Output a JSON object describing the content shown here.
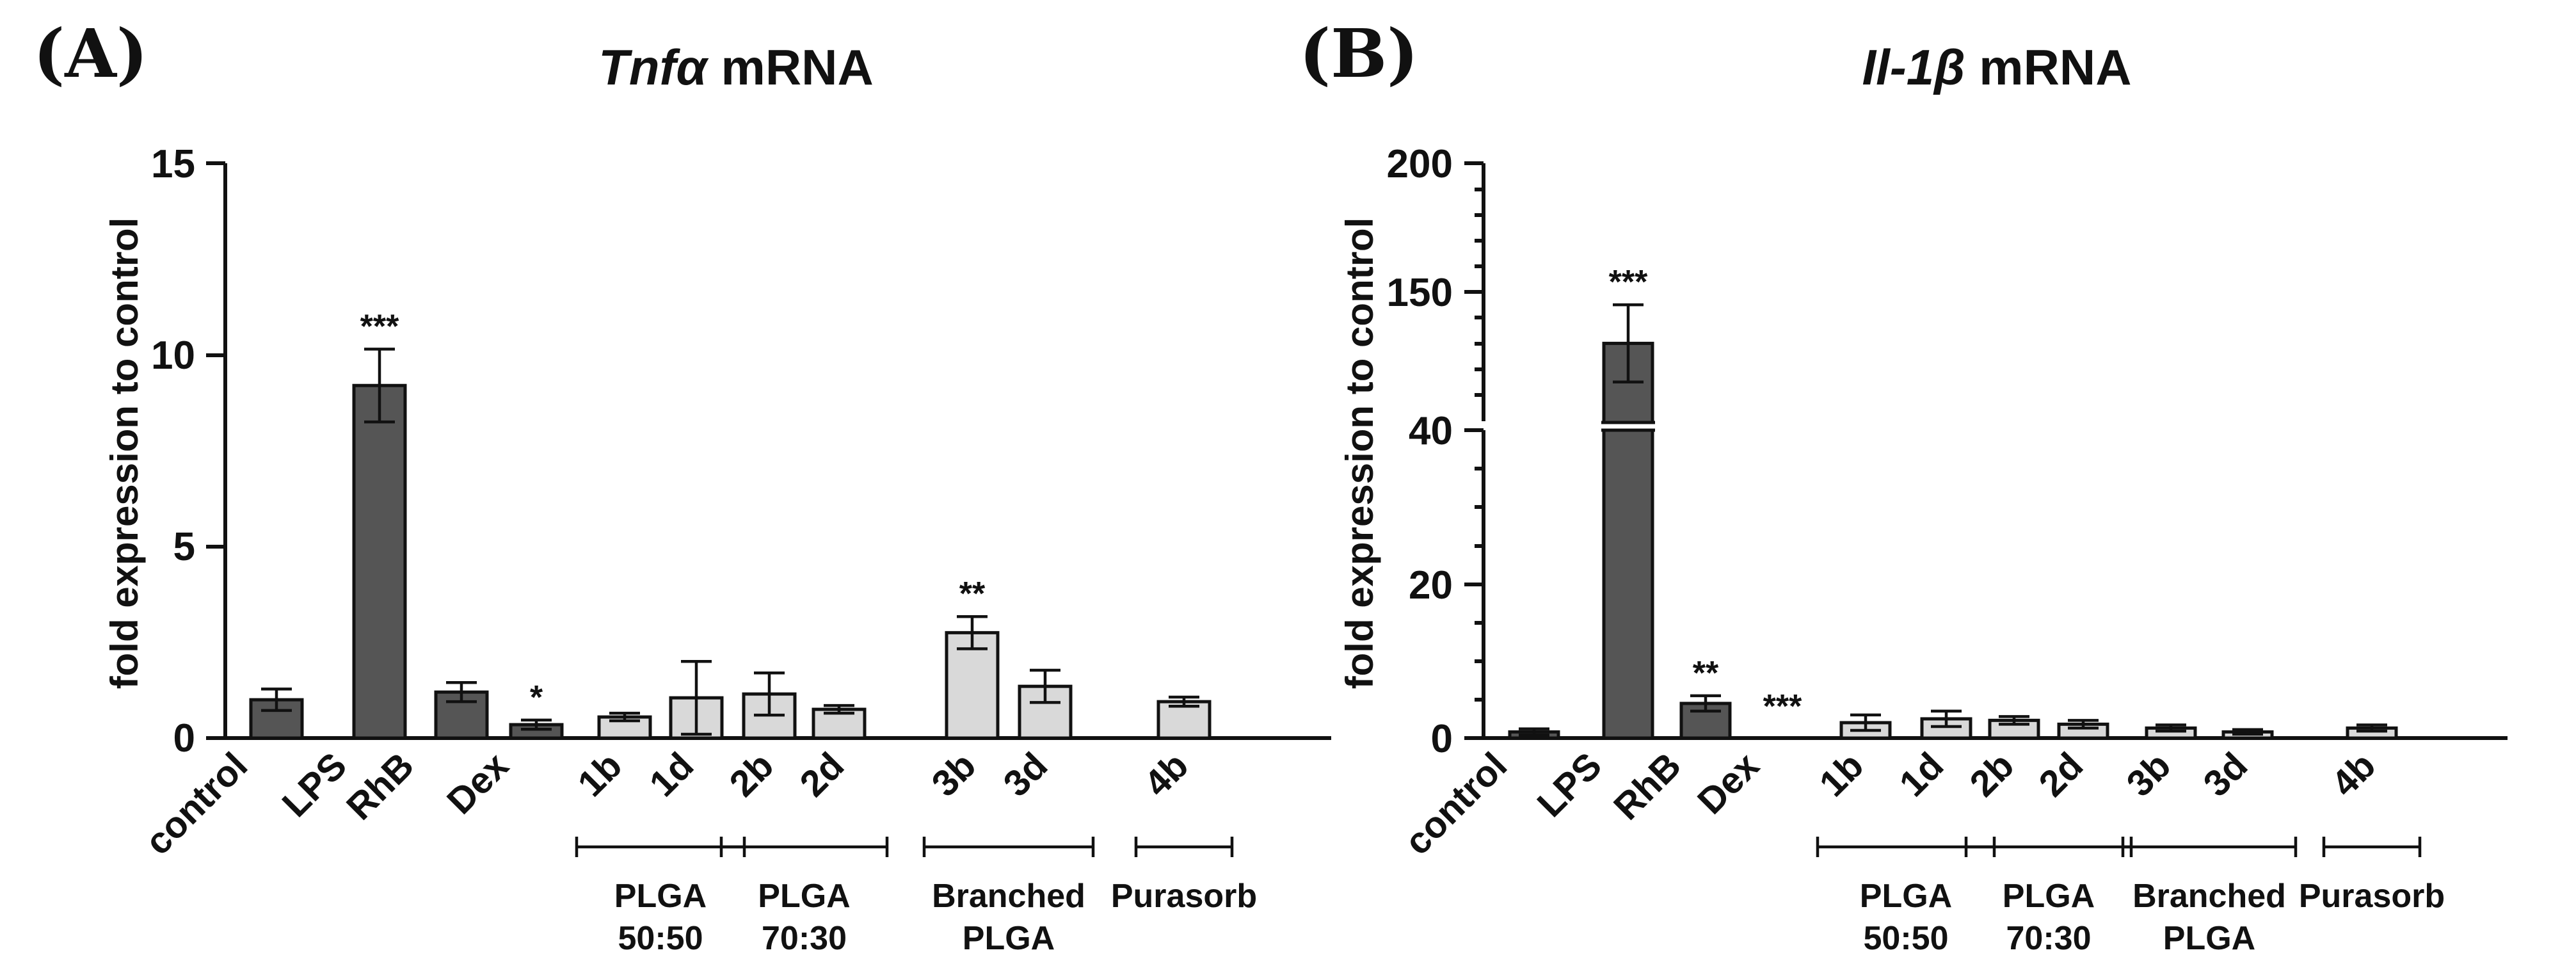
{
  "colors": {
    "dark": "#555555",
    "light": "#d9d9d9",
    "ink": "#111111"
  },
  "chart_data": [
    {
      "type": "bar",
      "panel": "(A)",
      "title_gene": "Tnfα",
      "title_suffix": " mRNA",
      "ylabel": "fold expression to control",
      "ylim": [
        0,
        15
      ],
      "yticks": [
        "0",
        "5",
        "10",
        "15"
      ],
      "categories": [
        "control",
        "LPS",
        "RhB",
        "Dex",
        "1b",
        "1d",
        "2b",
        "2d",
        "3b",
        "3d",
        "4b"
      ],
      "values": [
        1.0,
        9.2,
        1.2,
        0.35,
        0.55,
        1.05,
        1.15,
        0.75,
        2.75,
        1.35,
        0.95
      ],
      "errors": [
        0.28,
        0.95,
        0.25,
        0.12,
        0.1,
        0.95,
        0.55,
        0.1,
        0.42,
        0.42,
        0.12
      ],
      "fill": [
        "dark",
        "dark",
        "dark",
        "dark",
        "light",
        "light",
        "light",
        "light",
        "light",
        "light",
        "light"
      ],
      "significance": [
        "",
        "***",
        "",
        "*",
        "",
        "",
        "",
        "",
        "**",
        "",
        ""
      ],
      "groups": [
        {
          "line1": "PLGA",
          "line2": "50:50",
          "members": [
            4,
            5
          ]
        },
        {
          "line1": "PLGA",
          "line2": "70:30",
          "members": [
            6,
            7
          ]
        },
        {
          "line1": "Branched",
          "line2": "PLGA",
          "members": [
            8,
            9
          ]
        },
        {
          "line1": "Purasorb",
          "line2": "",
          "members": [
            10
          ]
        }
      ]
    },
    {
      "type": "bar",
      "panel": "(B)",
      "title_gene": "Il-1β",
      "title_suffix": " mRNA",
      "ylabel": "fold expression to control",
      "axis_break": {
        "lower": [
          0,
          40
        ],
        "upper": [
          100,
          200
        ]
      },
      "yticks_lower": [
        "0",
        "20",
        "40"
      ],
      "yticks_upper": [
        "150",
        "200"
      ],
      "categories": [
        "control",
        "LPS",
        "RhB",
        "Dex",
        "1b",
        "1d",
        "2b",
        "2d",
        "3b",
        "3d",
        "4b"
      ],
      "values": [
        0.8,
        130,
        4.5,
        0,
        2.0,
        2.5,
        2.3,
        1.8,
        1.3,
        0.8,
        1.3
      ],
      "errors": [
        0.4,
        15,
        1.0,
        0,
        1.0,
        1.0,
        0.5,
        0.5,
        0.4,
        0.3,
        0.4
      ],
      "fill": [
        "dark",
        "dark",
        "dark",
        "dark",
        "light",
        "light",
        "light",
        "light",
        "light",
        "light",
        "light"
      ],
      "significance": [
        "",
        "***",
        "**",
        "***",
        "",
        "",
        "",
        "",
        "",
        "",
        ""
      ],
      "groups": [
        {
          "line1": "PLGA",
          "line2": "50:50",
          "members": [
            4,
            5
          ]
        },
        {
          "line1": "PLGA",
          "line2": "70:30",
          "members": [
            6,
            7
          ]
        },
        {
          "line1": "Branched",
          "line2": "PLGA",
          "members": [
            8,
            9
          ]
        },
        {
          "line1": "Purasorb",
          "line2": "",
          "members": [
            10
          ]
        }
      ]
    }
  ]
}
